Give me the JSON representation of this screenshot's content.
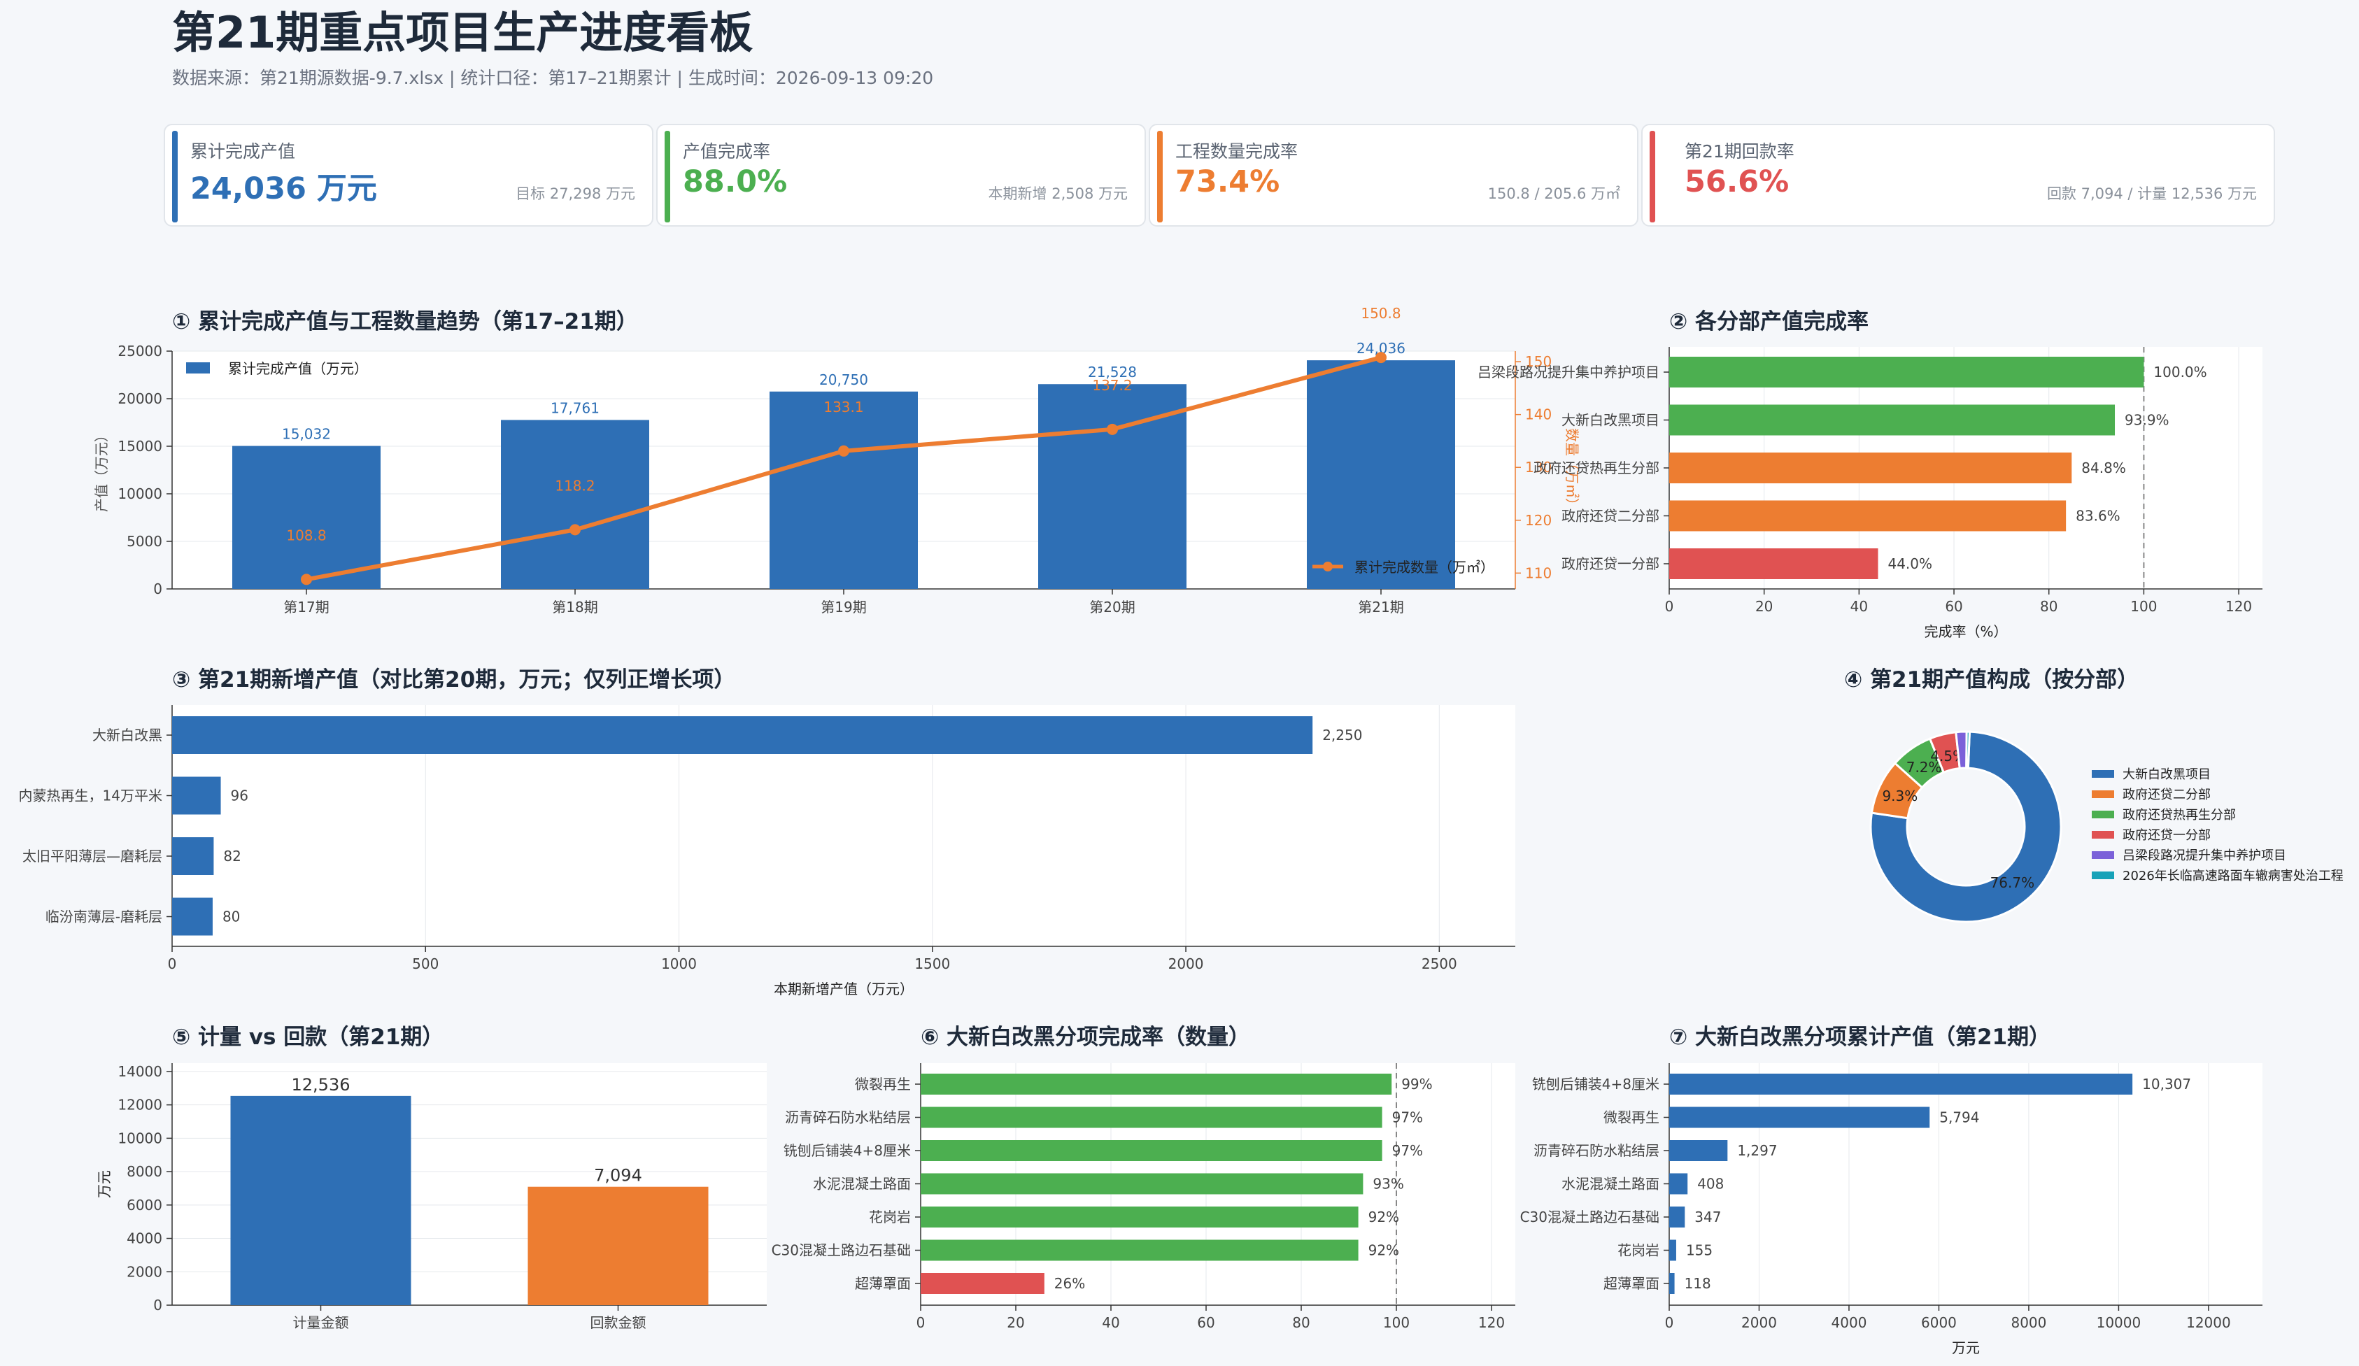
{
  "page": {
    "title": "第21期重点项目生产进度看板",
    "subtitle": "数据来源：第21期源数据-9.7.xlsx   |   统计口径：第17–21期累计   |   生成时间：2026-09-13 09:20"
  },
  "kpis": [
    {
      "label": "累计完成产值",
      "value": "24,036 万元",
      "sub": "目标 27,298 万元",
      "color": "#2e6fb5"
    },
    {
      "label": "产值完成率",
      "value": "88.0%",
      "sub": "本期新增 2,508 万元",
      "color": "#4caf50"
    },
    {
      "label": "工程数量完成率",
      "value": "73.4%",
      "sub": "150.8 / 205.6 万㎡",
      "color": "#ed7d31"
    },
    {
      "label": "第21期回款率",
      "value": "56.6%",
      "sub": "回款 7,094 / 计量 12,536 万元",
      "color": "#e05252"
    }
  ],
  "colors": {
    "blue": "#2e6fb5",
    "orange": "#ed7d31",
    "green": "#4caf50",
    "red": "#e05252",
    "purple": "#7b61d9",
    "teal": "#17a2b8"
  },
  "chart_data": [
    {
      "id": "c1",
      "type": "bar",
      "title": "① 累计完成产值与工程数量趋势（第17–21期）",
      "categories": [
        "第17期",
        "第18期",
        "第19期",
        "第20期",
        "第21期"
      ],
      "series": [
        {
          "name": "累计完成产值（万元）",
          "type": "bar",
          "axis": "left",
          "values": [
            15032,
            17761,
            20750,
            21528,
            24036
          ],
          "labels": [
            "15,032",
            "17,761",
            "20,750",
            "21,528",
            "24,036"
          ]
        },
        {
          "name": "累计完成数量（万㎡）",
          "type": "line",
          "axis": "right",
          "values": [
            108.8,
            118.2,
            133.1,
            137.2,
            150.8
          ],
          "labels": [
            "108.8",
            "118.2",
            "133.1",
            "137.2",
            "150.8"
          ]
        }
      ],
      "ylabel": "产值（万元）",
      "y2label": "数量（万㎡）",
      "ylim": [
        0,
        25000
      ],
      "yticks": [
        0,
        5000,
        10000,
        15000,
        20000,
        25000
      ],
      "y2lim": [
        107,
        152
      ],
      "y2ticks": [
        110,
        120,
        130,
        140,
        150
      ],
      "legend": "top-left / bottom-right"
    },
    {
      "id": "c2",
      "type": "bar",
      "orientation": "horizontal",
      "title": "② 各分部产值完成率",
      "categories": [
        "吕梁段路况提升集中养护项目",
        "大新白改黑项目",
        "政府还贷热再生分部",
        "政府还贷二分部",
        "政府还贷一分部"
      ],
      "values": [
        100.0,
        93.9,
        84.8,
        83.6,
        44.0
      ],
      "labels": [
        "100.0%",
        "93.9%",
        "84.8%",
        "83.6%",
        "44.0%"
      ],
      "bar_colors": [
        "#4caf50",
        "#4caf50",
        "#ed7d31",
        "#ed7d31",
        "#e05252"
      ],
      "xlabel": "完成率（%）",
      "xlim": [
        0,
        125
      ],
      "xticks": [
        0,
        20,
        40,
        60,
        80,
        100,
        120
      ],
      "reference_line": 100
    },
    {
      "id": "c3",
      "type": "bar",
      "orientation": "horizontal",
      "title": "③ 第21期新增产值（对比第20期，万元；仅列正增长项）",
      "categories": [
        "大新白改黑",
        "内蒙热再生，14万平米",
        "太旧平阳薄层—磨耗层",
        "临汾南薄层-磨耗层"
      ],
      "values": [
        2250,
        96,
        82,
        80
      ],
      "labels": [
        "2,250",
        "96",
        "82",
        "80"
      ],
      "xlabel": "本期新增产值（万元）",
      "xlim": [
        0,
        2650
      ],
      "xticks": [
        0,
        500,
        1000,
        1500,
        2000,
        2500
      ]
    },
    {
      "id": "c4",
      "type": "pie",
      "donut": true,
      "title": "④ 第21期产值构成（按分部）",
      "labels": [
        "大新白改黑项目",
        "政府还贷二分部",
        "政府还贷热再生分部",
        "政府还贷一分部",
        "吕梁段路况提升集中养护项目",
        "2026年长临高速路面车辙病害处治工程"
      ],
      "values": [
        76.7,
        9.3,
        7.2,
        4.5,
        1.8,
        0.5
      ],
      "value_labels": [
        "76.7%",
        "9.3%",
        "7.2%",
        "4.5%",
        "",
        ""
      ],
      "colors": [
        "#2e6fb5",
        "#ed7d31",
        "#4caf50",
        "#e05252",
        "#7b61d9",
        "#17a2b8"
      ],
      "legend": "right"
    },
    {
      "id": "c5",
      "type": "bar",
      "title": "⑤ 计量 vs 回款（第21期）",
      "categories": [
        "计量金额",
        "回款金额"
      ],
      "values": [
        12536,
        7094
      ],
      "labels": [
        "12,536",
        "7,094"
      ],
      "bar_colors": [
        "#2e6fb5",
        "#ed7d31"
      ],
      "ylabel": "万元",
      "ylim": [
        0,
        14500
      ],
      "yticks": [
        0,
        2000,
        4000,
        6000,
        8000,
        10000,
        12000,
        14000
      ]
    },
    {
      "id": "c6",
      "type": "bar",
      "orientation": "horizontal",
      "title": "⑥ 大新白改黑分项完成率（数量）",
      "categories": [
        "微裂再生",
        "沥青碎石防水粘结层",
        "铣刨后铺装4+8厘米",
        "水泥混凝土路面",
        "花岗岩",
        "C30混凝土路边石基础",
        "超薄罩面"
      ],
      "values": [
        99,
        97,
        97,
        93,
        92,
        92,
        26
      ],
      "labels": [
        "99%",
        "97%",
        "97%",
        "93%",
        "92%",
        "92%",
        "26%"
      ],
      "bar_colors": [
        "#4caf50",
        "#4caf50",
        "#4caf50",
        "#4caf50",
        "#4caf50",
        "#4caf50",
        "#e05252"
      ],
      "xlim": [
        0,
        125
      ],
      "xticks": [
        0,
        20,
        40,
        60,
        80,
        100,
        120
      ],
      "reference_line": 100
    },
    {
      "id": "c7",
      "type": "bar",
      "orientation": "horizontal",
      "title": "⑦ 大新白改黑分项累计产值（第21期）",
      "categories": [
        "铣刨后铺装4+8厘米",
        "微裂再生",
        "沥青碎石防水粘结层",
        "水泥混凝土路面",
        "C30混凝土路边石基础",
        "花岗岩",
        "超薄罩面"
      ],
      "values": [
        10307,
        5794,
        1297,
        408,
        347,
        155,
        118
      ],
      "labels": [
        "10,307",
        "5,794",
        "1,297",
        "408",
        "347",
        "155",
        "118"
      ],
      "xlabel": "万元",
      "xlim": [
        0,
        13200
      ],
      "xticks": [
        0,
        2000,
        4000,
        6000,
        8000,
        10000,
        12000
      ]
    }
  ]
}
